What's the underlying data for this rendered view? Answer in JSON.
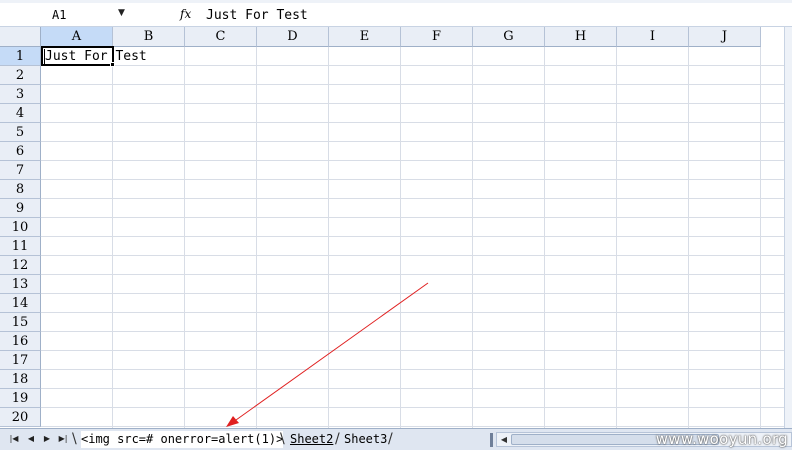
{
  "formula_bar": {
    "cell_reference": "A1",
    "fx_label": "fx",
    "formula_value": "Just For Test"
  },
  "columns": [
    "A",
    "B",
    "C",
    "D",
    "E",
    "F",
    "G",
    "H",
    "I",
    "J"
  ],
  "rows": [
    "1",
    "2",
    "3",
    "4",
    "5",
    "6",
    "7",
    "8",
    "9",
    "10",
    "11",
    "12",
    "13",
    "14",
    "15",
    "16",
    "17",
    "18",
    "19",
    "20"
  ],
  "selection": {
    "column": "A",
    "row": "1"
  },
  "cells": {
    "A1": "Just For Test"
  },
  "sheet_tabs": [
    {
      "label": "<img src=# onerror=alert(1)>",
      "active": true
    },
    {
      "label": "Sheet2",
      "active": false
    },
    {
      "label": "Sheet3",
      "active": false
    }
  ],
  "icons": {
    "nav_first": "first-sheet-icon",
    "nav_prev": "prev-sheet-icon",
    "nav_next": "next-sheet-icon",
    "nav_last": "last-sheet-icon",
    "dropdown": "chevron-down-icon",
    "fx": "function-icon"
  },
  "annotation": {
    "color": "#e02020"
  },
  "watermark": "www.wooyun.org"
}
